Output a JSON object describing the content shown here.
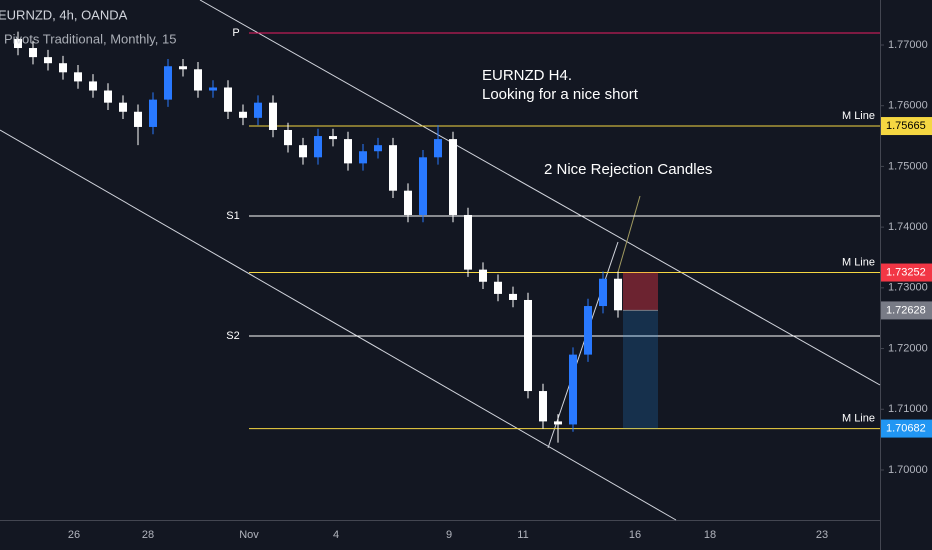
{
  "chart_data": {
    "type": "candlestick",
    "title": "EURNZD, 4h, OANDA",
    "subtitle": "Pivots Traditional, Monthly, 15",
    "annotations": [
      "EURNZD H4.",
      "Looking for a nice short",
      "2 Nice Rejection Candles"
    ],
    "x_labels": [
      "26",
      "28",
      "Nov",
      "4",
      "9",
      "11",
      "16",
      "18",
      "23"
    ],
    "up_color": "#2979ff",
    "down_color": "#ffffff",
    "open": [
      1.771,
      1.7695,
      1.768,
      1.767,
      1.7655,
      1.764,
      1.7625,
      1.7605,
      1.759,
      1.7565,
      1.761,
      1.7665,
      1.766,
      1.7625,
      1.763,
      1.759,
      1.758,
      1.7605,
      1.756,
      1.7535,
      1.7515,
      1.755,
      1.7545,
      1.7505,
      1.7525,
      1.7535,
      1.746,
      1.742,
      1.7515,
      1.7545,
      1.742,
      1.733,
      1.731,
      1.729,
      1.728,
      1.713,
      1.708,
      1.7075,
      1.719,
      1.727,
      1.7315
    ],
    "high": [
      1.7722,
      1.7707,
      1.7692,
      1.7682,
      1.7667,
      1.7652,
      1.7637,
      1.7617,
      1.7602,
      1.7622,
      1.7677,
      1.7677,
      1.7672,
      1.7642,
      1.7642,
      1.7602,
      1.7617,
      1.7617,
      1.7572,
      1.7547,
      1.7562,
      1.7562,
      1.7557,
      1.7537,
      1.7547,
      1.7547,
      1.7472,
      1.7527,
      1.7568,
      1.7557,
      1.7432,
      1.7342,
      1.7322,
      1.7302,
      1.7292,
      1.7142,
      1.7092,
      1.7202,
      1.7282,
      1.7327,
      1.7327
    ],
    "low": [
      1.7683,
      1.7668,
      1.7658,
      1.7643,
      1.7628,
      1.7613,
      1.7593,
      1.7578,
      1.7535,
      1.7553,
      1.7598,
      1.7648,
      1.7613,
      1.7613,
      1.7578,
      1.7568,
      1.7568,
      1.7548,
      1.7523,
      1.7503,
      1.7503,
      1.7533,
      1.7493,
      1.7493,
      1.7513,
      1.7448,
      1.7408,
      1.7408,
      1.7503,
      1.7408,
      1.7318,
      1.7298,
      1.7278,
      1.7268,
      1.7118,
      1.7068,
      1.7045,
      1.7063,
      1.7178,
      1.7258,
      1.7251
    ],
    "close": [
      1.7695,
      1.768,
      1.767,
      1.7655,
      1.764,
      1.7625,
      1.7605,
      1.759,
      1.7565,
      1.761,
      1.7665,
      1.766,
      1.7625,
      1.763,
      1.759,
      1.758,
      1.7605,
      1.756,
      1.7535,
      1.7515,
      1.755,
      1.7545,
      1.7505,
      1.7525,
      1.7535,
      1.746,
      1.742,
      1.7515,
      1.7545,
      1.742,
      1.733,
      1.731,
      1.729,
      1.728,
      1.713,
      1.708,
      1.7075,
      1.719,
      1.727,
      1.7315,
      1.7263
    ],
    "ylim": [
      1.69176,
      1.77741
    ],
    "yticks": [
      {
        "value": 1.77,
        "label": "1.77000"
      },
      {
        "value": 1.76,
        "label": "1.76000"
      },
      {
        "value": 1.75,
        "label": "1.75000"
      },
      {
        "value": 1.74,
        "label": "1.74000"
      },
      {
        "value": 1.73,
        "label": "1.73000"
      },
      {
        "value": 1.72,
        "label": "1.72000"
      },
      {
        "value": 1.71,
        "label": "1.71000"
      },
      {
        "value": 1.7,
        "label": "1.70000"
      }
    ],
    "levels": [
      {
        "label": "P",
        "value": 1.77198,
        "color": "#e91e63"
      },
      {
        "label": "M Line",
        "value": 1.75665,
        "color": "#f5d742"
      },
      {
        "label": "S1",
        "value": 1.74183,
        "color": "#ffffff"
      },
      {
        "label": "M Line",
        "value": 1.73252,
        "color": "#f5d742"
      },
      {
        "label": "S2",
        "value": 1.72207,
        "color": "#ffffff"
      },
      {
        "label": "M Line",
        "value": 1.70682,
        "color": "#f5d742"
      }
    ],
    "price_tags": [
      {
        "value": 1.75665,
        "label": "1.75665",
        "color": "#f5d742",
        "text_color": "#000000"
      },
      {
        "value": 1.73252,
        "label": "1.73252",
        "color": "#f23645",
        "text_color": "#ffffff"
      },
      {
        "value": 1.72628,
        "label": "1.72628",
        "color": "#787b86",
        "text_color": "#ffffff"
      },
      {
        "value": 1.70682,
        "label": "1.70682",
        "color": "#2196f3",
        "text_color": "#ffffff"
      }
    ],
    "position": {
      "entry": 1.72628,
      "stop": 1.73252,
      "target": 1.70682
    }
  }
}
